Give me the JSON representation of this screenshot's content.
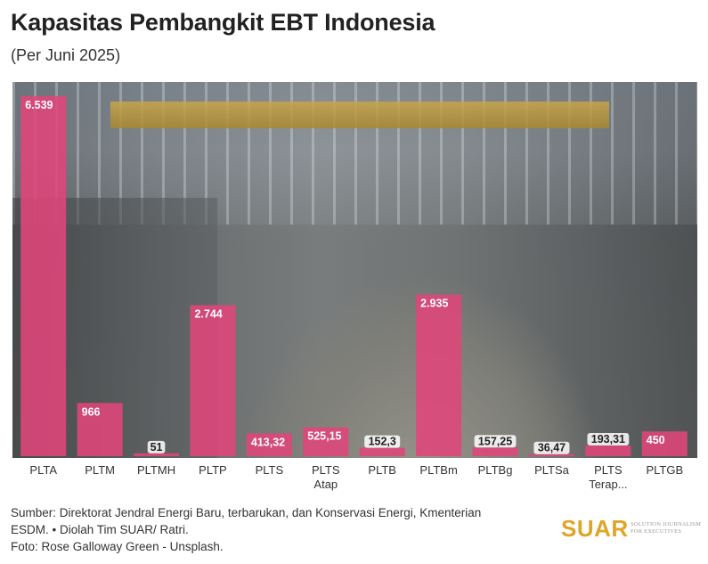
{
  "header": {
    "title": "Kapasitas Pembangkit EBT Indonesia",
    "subtitle": "(Per Juni 2025)"
  },
  "chart_data": {
    "type": "bar",
    "categories": [
      "PLTA",
      "PLTM",
      "PLTMH",
      "PLTP",
      "PLTS",
      "PLTS\nAtap",
      "PLTB",
      "PLTBm",
      "PLTBg",
      "PLTSa",
      "PLTS\nTerap...",
      "PLTGB"
    ],
    "values": [
      6539,
      966,
      51,
      2744,
      413.32,
      525.15,
      152.3,
      2935,
      157.25,
      36.47,
      193.31,
      450
    ],
    "value_labels": [
      "6.539",
      "966",
      "51",
      "2.744",
      "413,32",
      "525,15",
      "152,3",
      "2.935",
      "157,25",
      "36,47",
      "193,31",
      "450"
    ],
    "ylim": [
      0,
      6539
    ],
    "grid": false,
    "bar_color": "#e0457a",
    "title": "Kapasitas Pembangkit EBT Indonesia",
    "subtitle": "(Per Juni 2025)"
  },
  "footer": {
    "source_line1": "Sumber: Direktorat Jendral Energi Baru, terbarukan, dan Konservasi Energi, Kmenterian",
    "source_line2": "ESDM. • Diolah Tim SUAR/ Ratri.",
    "photo_credit": "Foto: Rose Galloway Green - Unsplash."
  },
  "logo": {
    "text": "SUAR",
    "tagline": "Solution Journalism for Executives",
    "color": "#e0a526"
  }
}
